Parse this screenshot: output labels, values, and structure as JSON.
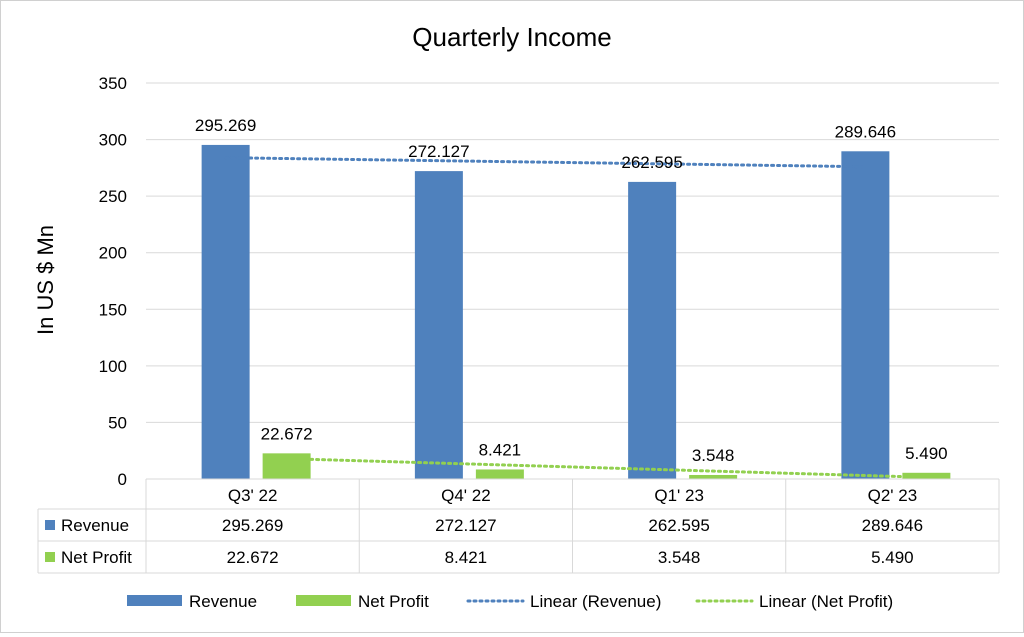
{
  "chart_data": {
    "type": "bar",
    "title": "Quarterly Income",
    "ylabel": "In US $ Mn",
    "xlabel": "",
    "ylim": [
      0,
      350
    ],
    "yticks": [
      0,
      50,
      100,
      150,
      200,
      250,
      300,
      350
    ],
    "grid": true,
    "categories": [
      "Q3' 22",
      "Q4' 22",
      "Q1' 23",
      "Q2' 23"
    ],
    "series": [
      {
        "name": "Revenue",
        "values": [
          295.269,
          272.127,
          262.595,
          289.646
        ],
        "labels": [
          "295.269",
          "272.127",
          "262.595",
          "289.646"
        ],
        "color": "#4f81bd"
      },
      {
        "name": "Net Profit",
        "values": [
          22.672,
          8.421,
          3.548,
          5.49
        ],
        "labels": [
          "22.672",
          "8.421",
          "3.548",
          "5.490"
        ],
        "color": "#92d050"
      }
    ],
    "trendlines": [
      {
        "name": "Linear (Revenue)",
        "series": "Revenue",
        "start": 284.0,
        "end": 276.0,
        "color": "#4f81bd"
      },
      {
        "name": "Linear (Net Profit)",
        "series": "Net Profit",
        "start": 18.0,
        "end": 1.5,
        "color": "#92d050"
      }
    ],
    "data_table": true,
    "legend_position": "bottom"
  }
}
